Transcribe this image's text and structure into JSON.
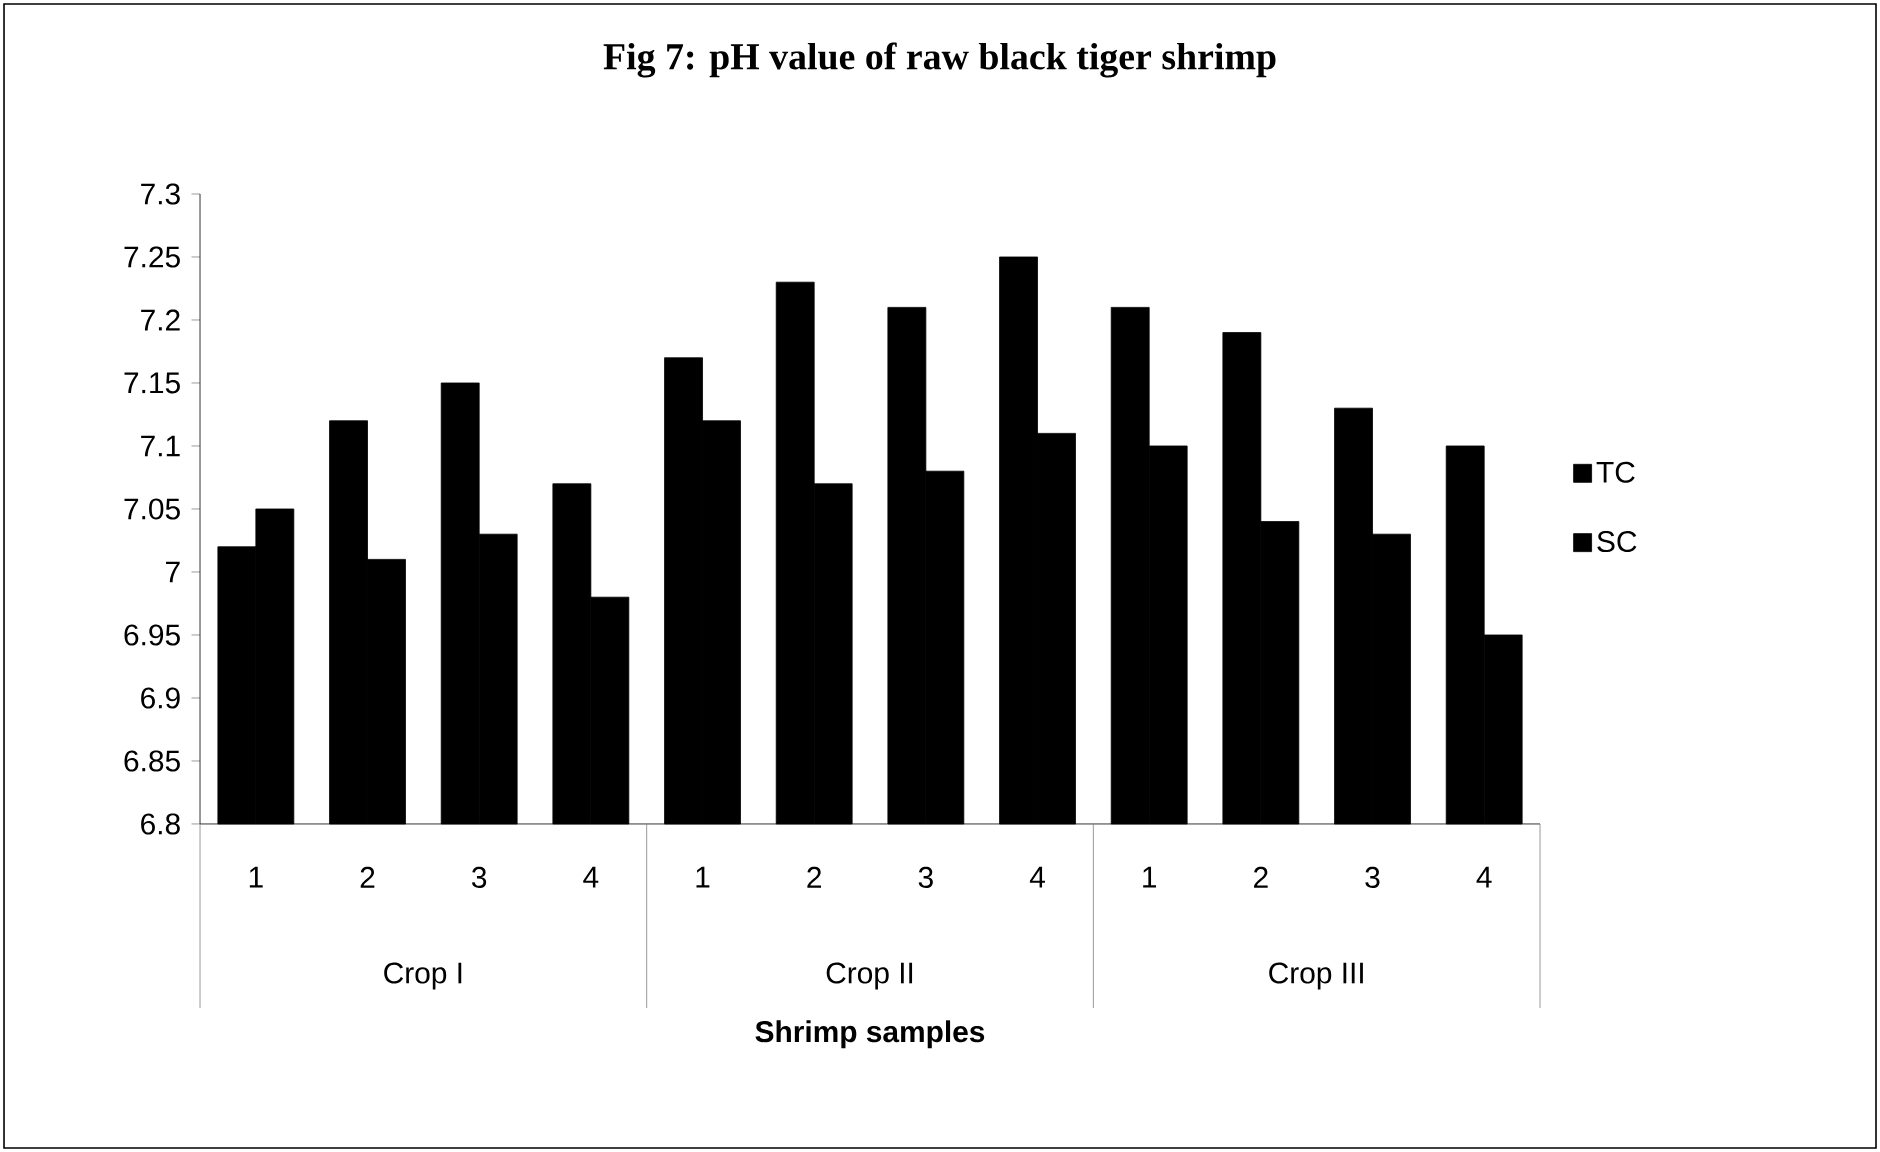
{
  "chart_data": {
    "type": "bar",
    "title": "Fig 7: pH value of raw black tiger shrimp",
    "xlabel": "Shrimp samples",
    "categories": [
      "1",
      "2",
      "3",
      "4",
      "1",
      "2",
      "3",
      "4",
      "1",
      "2",
      "3",
      "4"
    ],
    "annotations": [
      "Crop I",
      "Crop II",
      "Crop III"
    ],
    "series": [
      {
        "name": "TC",
        "color": "#000000",
        "values": [
          7.02,
          7.12,
          7.15,
          7.07,
          7.17,
          7.23,
          7.21,
          7.25,
          7.21,
          7.19,
          7.13,
          7.1
        ]
      },
      {
        "name": "SC",
        "color": "#000000",
        "values": [
          7.05,
          7.01,
          7.03,
          6.98,
          7.12,
          7.07,
          7.08,
          7.11,
          7.1,
          7.04,
          7.03,
          6.95
        ]
      }
    ],
    "ylim": [
      6.8,
      7.3
    ],
    "yticks": [
      6.8,
      6.85,
      6.9,
      6.95,
      7,
      7.05,
      7.1,
      7.15,
      7.2,
      7.25,
      7.3
    ],
    "grid": false,
    "legend": "right"
  }
}
